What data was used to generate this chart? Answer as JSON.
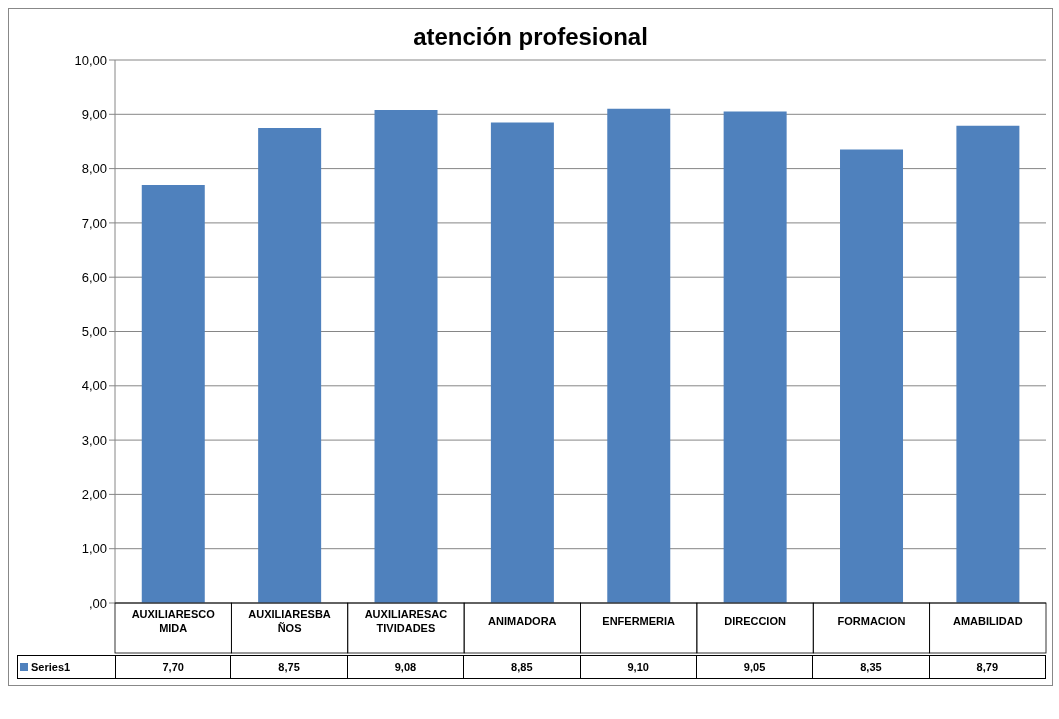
{
  "chart_data": {
    "type": "bar",
    "title": "atención profesional",
    "categories": [
      "AUXILIARESCOMIDA",
      "AUXILIARESBAÑOS",
      "AUXILIARESACTIVIDADES",
      "ANIMADORA",
      "ENFERMERIA",
      "DIRECCION",
      "FORMACION",
      "AMABILIDAD"
    ],
    "series": [
      {
        "name": "Series1",
        "color": "#4f81bd",
        "values": [
          7.7,
          8.75,
          9.08,
          8.85,
          9.1,
          9.05,
          8.35,
          8.79
        ],
        "value_labels": [
          "7,70",
          "8,75",
          "9,08",
          "8,85",
          "9,10",
          "9,05",
          "8,35",
          "8,79"
        ]
      }
    ],
    "ylim": [
      0,
      10
    ],
    "yticks": [
      {
        "value": 0,
        "label": ",00"
      },
      {
        "value": 1,
        "label": "1,00"
      },
      {
        "value": 2,
        "label": "2,00"
      },
      {
        "value": 3,
        "label": "3,00"
      },
      {
        "value": 4,
        "label": "4,00"
      },
      {
        "value": 5,
        "label": "5,00"
      },
      {
        "value": 6,
        "label": "6,00"
      },
      {
        "value": 7,
        "label": "7,00"
      },
      {
        "value": 8,
        "label": "8,00"
      },
      {
        "value": 9,
        "label": "9,00"
      },
      {
        "value": 10,
        "label": "10,00"
      }
    ],
    "grid": "y",
    "legend": "bottom"
  }
}
